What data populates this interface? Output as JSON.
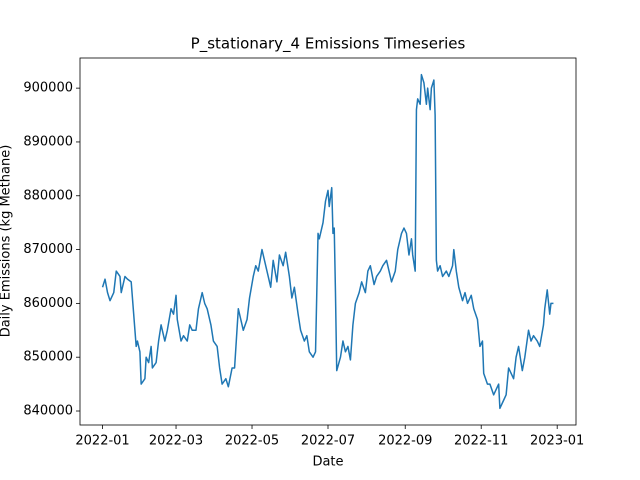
{
  "chart_data": {
    "type": "line",
    "title": "P_stationary_4 Emissions Timeseries",
    "x_label": "Date",
    "y_label": "Daily Emissions (kg Methane)",
    "color": "#1f77b4",
    "x": [
      18993,
      18995,
      18997,
      18999,
      19002,
      19004,
      19007,
      19008,
      19011,
      19013,
      19016,
      19018,
      19020,
      19021,
      19023,
      19024,
      19027,
      19028,
      19030,
      19032,
      19033,
      19036,
      19038,
      19040,
      19043,
      19045,
      19048,
      19050,
      19052,
      19053,
      19056,
      19058,
      19061,
      19063,
      19065,
      19068,
      19070,
      19073,
      19075,
      19077,
      19080,
      19082,
      19085,
      19087,
      19089,
      19092,
      19094,
      19097,
      19099,
      19102,
      19104,
      19106,
      19109,
      19111,
      19114,
      19116,
      19118,
      19121,
      19123,
      19126,
      19128,
      19130,
      19133,
      19135,
      19138,
      19140,
      19143,
      19145,
      19147,
      19150,
      19152,
      19155,
      19157,
      19159,
      19162,
      19164,
      19166,
      19167,
      19170,
      19172,
      19174,
      19175,
      19177,
      19178,
      19179,
      19180,
      19181,
      19184,
      19186,
      19188,
      19190,
      19192,
      19194,
      19196,
      19199,
      19201,
      19204,
      19206,
      19208,
      19211,
      19213,
      19216,
      19218,
      19221,
      19223,
      19225,
      19228,
      19230,
      19233,
      19235,
      19237,
      19239,
      19241,
      19242,
      19244,
      19245,
      19246,
      19248,
      19249,
      19251,
      19253,
      19254,
      19256,
      19257,
      19259,
      19260,
      19261,
      19262,
      19264,
      19266,
      19269,
      19271,
      19274,
      19275,
      19277,
      19279,
      19282,
      19284,
      19286,
      19289,
      19291,
      19294,
      19296,
      19298,
      19299,
      19302,
      19304,
      19307,
      19309,
      19311,
      19312,
      19315,
      19317,
      19319,
      19321,
      19323,
      19325,
      19327,
      19330,
      19332,
      19335,
      19337,
      19339,
      19342,
      19344,
      19347,
      19348,
      19350,
      19352,
      19353,
      19355
    ],
    "values": [
      863000,
      864500,
      862000,
      860500,
      862000,
      866000,
      865000,
      862000,
      865000,
      864500,
      864000,
      858000,
      852000,
      853000,
      851000,
      845000,
      846000,
      850000,
      849000,
      852000,
      848000,
      849000,
      853000,
      856000,
      853000,
      855000,
      859000,
      858000,
      861500,
      857000,
      853000,
      854000,
      853000,
      856000,
      855000,
      855000,
      859000,
      862000,
      860000,
      859000,
      856000,
      853000,
      852000,
      848000,
      845000,
      846000,
      844500,
      848000,
      848000,
      859000,
      857000,
      855000,
      857000,
      861000,
      865000,
      867000,
      866000,
      870000,
      868000,
      865000,
      863000,
      868000,
      864000,
      869000,
      867000,
      869500,
      865000,
      861000,
      863000,
      858000,
      855000,
      853000,
      854000,
      851000,
      850000,
      851000,
      873000,
      872000,
      875000,
      879000,
      881000,
      878000,
      881500,
      873000,
      874000,
      862000,
      847500,
      850000,
      853000,
      851000,
      852000,
      849500,
      856000,
      860000,
      862000,
      864000,
      862000,
      866000,
      867000,
      863500,
      865000,
      866000,
      867000,
      868000,
      866000,
      864000,
      866000,
      870000,
      873000,
      874000,
      873000,
      869000,
      872000,
      869000,
      866000,
      896000,
      898000,
      897000,
      902500,
      901000,
      897000,
      900000,
      896000,
      900000,
      901500,
      895000,
      868000,
      866000,
      867000,
      865000,
      866000,
      865000,
      867000,
      870000,
      866000,
      863000,
      860500,
      862000,
      860000,
      861500,
      859000,
      857000,
      852000,
      853000,
      847000,
      845000,
      845000,
      843000,
      844000,
      845000,
      840500,
      842000,
      843000,
      848000,
      847000,
      846000,
      850000,
      852000,
      847500,
      850000,
      855000,
      853000,
      854000,
      853000,
      852000,
      856000,
      859000,
      862500,
      858000,
      860000,
      860000
    ],
    "xlim": [
      18974.9,
      19373.1
    ],
    "xticks": [
      {
        "value": 18993,
        "label": "2022-01"
      },
      {
        "value": 19052,
        "label": "2022-03"
      },
      {
        "value": 19113,
        "label": "2022-05"
      },
      {
        "value": 19174,
        "label": "2022-07"
      },
      {
        "value": 19236,
        "label": "2022-09"
      },
      {
        "value": 19297,
        "label": "2022-11"
      },
      {
        "value": 19358,
        "label": "2023-01"
      }
    ],
    "ylim": [
      837400,
      905600
    ],
    "yticks": [
      840000,
      850000,
      860000,
      870000,
      880000,
      890000,
      900000
    ]
  }
}
